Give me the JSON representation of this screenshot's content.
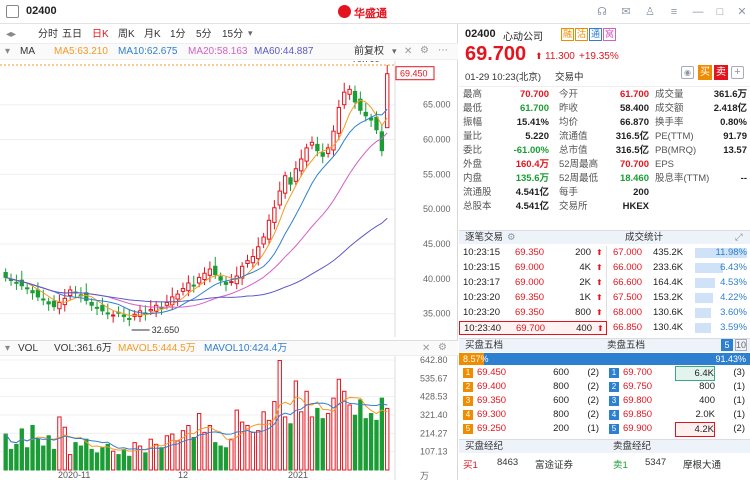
{
  "app": {
    "stock_code": "02400",
    "brand": "华盛通",
    "tabs": [
      "分时",
      "五日",
      "日K",
      "周K",
      "月K",
      "1分",
      "5分",
      "15分"
    ],
    "active_tab": "日K"
  },
  "ma": {
    "label": "MA",
    "ma5": "MA5:63.210",
    "ma10": "MA10:62.675",
    "ma20": "MA20:58.163",
    "ma60": "MA60:44.887",
    "adjust": "前复权",
    "high_mark": "70.700",
    "low_mark": "32.650",
    "cur_price_tag": "69.450",
    "y_ticks": [
      "65.000",
      "60.000",
      "55.000",
      "50.000",
      "45.000",
      "40.000",
      "35.000"
    ]
  },
  "vol": {
    "label": "VOL",
    "vol": "VOL:361.6万",
    "mavol5": "MAVOL5:444.5万",
    "mavol10": "MAVOL10:424.4万",
    "y_ticks": [
      "642.80",
      "535.67",
      "428.53",
      "321.40",
      "214.27",
      "107.13",
      "万"
    ],
    "x_labels": [
      "2020-11",
      "12",
      "2021"
    ]
  },
  "quote": {
    "code": "02400",
    "name": "心动公司",
    "badges": [
      "融",
      "沽",
      "通",
      "窝"
    ],
    "price": "69.700",
    "change": "11.300",
    "change_pct": "+19.35%",
    "time": "01-29  10:23(北京)",
    "status": "交易中",
    "btn_buy": "买",
    "btn_sell": "卖"
  },
  "stats": [
    [
      "最高",
      "70.700",
      "今开",
      "61.700",
      "成交量",
      "361.6万"
    ],
    [
      "最低",
      "61.700",
      "昨收",
      "58.400",
      "成交额",
      "2.418亿"
    ],
    [
      "振幅",
      "15.41%",
      "均价",
      "66.870",
      "换手率",
      "0.80%"
    ],
    [
      "量比",
      "5.220",
      "流通值",
      "316.5亿",
      "PE(TTM)",
      "91.79"
    ],
    [
      "委比",
      "-61.00%",
      "总市值",
      "316.5亿",
      "PB(MRQ)",
      "13.57"
    ],
    [
      "外盘",
      "160.4万",
      "52周最高",
      "70.700",
      "EPS",
      ""
    ],
    [
      "内盘",
      "135.6万",
      "52周最低",
      "18.460",
      "股息率(TTM)",
      "--"
    ],
    [
      "流通股",
      "4.541亿",
      "每手",
      "200",
      "",
      ""
    ],
    [
      "总股本",
      "4.541亿",
      "交易所",
      "HKEX",
      "",
      ""
    ]
  ],
  "trades": {
    "title": "逐笔交易",
    "items": [
      [
        "10:23:15",
        "69.350",
        "200"
      ],
      [
        "10:23:15",
        "69.000",
        "4K"
      ],
      [
        "10:23:17",
        "69.000",
        "2K"
      ],
      [
        "10:23:20",
        "69.350",
        "1K"
      ],
      [
        "10:23:20",
        "69.350",
        "800"
      ],
      [
        "10:23:40",
        "69.700",
        "400"
      ]
    ]
  },
  "deal_stats": {
    "title": "成交统计",
    "items": [
      [
        "67.000",
        "435.2K",
        "11.98%"
      ],
      [
        "66.000",
        "233.6K",
        "6.43%"
      ],
      [
        "66.600",
        "164.4K",
        "4.53%"
      ],
      [
        "67.500",
        "153.2K",
        "4.22%"
      ],
      [
        "68.000",
        "130.6K",
        "3.60%"
      ],
      [
        "66.850",
        "130.4K",
        "3.59%"
      ]
    ]
  },
  "bid_header": "买盘五档",
  "ask_header": "卖盘五档",
  "bid_pct": "8.57%",
  "ask_pct": "91.43%",
  "bids": [
    [
      "1",
      "69.450",
      "600",
      "(2)"
    ],
    [
      "2",
      "69.400",
      "800",
      "(2)"
    ],
    [
      "3",
      "69.350",
      "600",
      "(2)"
    ],
    [
      "4",
      "69.300",
      "800",
      "(2)"
    ],
    [
      "5",
      "69.250",
      "200",
      "(1)"
    ]
  ],
  "asks": [
    [
      "1",
      "69.700",
      "6.4K",
      "(3)"
    ],
    [
      "2",
      "69.750",
      "800",
      "(1)"
    ],
    [
      "3",
      "69.800",
      "400",
      "(1)"
    ],
    [
      "4",
      "69.850",
      "2.0K",
      "(1)"
    ],
    [
      "5",
      "69.900",
      "4.2K",
      "(2)"
    ]
  ],
  "brokers": {
    "buy_title": "买盘经纪",
    "sell_title": "卖盘经纪",
    "buy": [
      "买1",
      "8463",
      "富途证券"
    ],
    "sell": [
      "卖1",
      "5347",
      "摩根大通"
    ]
  },
  "colors": {
    "up": "#e4141e",
    "down": "#1a9d34",
    "ma5": "#f59a23",
    "ma10": "#2d7fd0",
    "ma20": "#d35fc6",
    "ma60": "#5b59c9"
  }
}
